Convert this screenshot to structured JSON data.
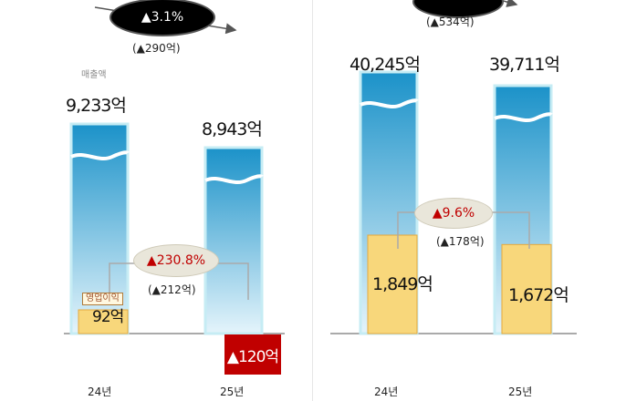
{
  "chart_data": [
    {
      "type": "bar",
      "categories": [
        "24년",
        "25년"
      ],
      "series": [
        {
          "name": "매출액",
          "values": [
            9233,
            8943
          ],
          "labels": [
            "9,233억",
            "8,943억"
          ]
        },
        {
          "name": "영업이익",
          "values": [
            92,
            -120
          ],
          "labels": [
            "92억",
            "▲120억"
          ]
        }
      ],
      "revenue_change": {
        "label": "▲3.1%",
        "amount": "(▲290억)"
      },
      "profit_change": {
        "label": "▲230.8%",
        "amount": "(▲212억)"
      },
      "broken_axis": true
    },
    {
      "type": "bar",
      "categories": [
        "24년",
        "25년"
      ],
      "series": [
        {
          "values": [
            40245,
            39711
          ],
          "labels": [
            "40,245억",
            "39,711억"
          ]
        },
        {
          "values": [
            1849,
            1672
          ],
          "labels": [
            "1,849억",
            "1,672억"
          ]
        }
      ],
      "revenue_change": {
        "label": "",
        "amount": "(▲534억)"
      },
      "profit_change": {
        "label": "▲9.6%",
        "amount": "(▲178억)"
      },
      "broken_axis": true
    }
  ],
  "colors": {
    "bar_top": "#1b92c9",
    "bar_bottom": "#dff2fa",
    "bar_edge": "#c6ecf4",
    "profit_bar": "#f8d77b",
    "profit_edge": "#e6a83c",
    "negative_bar": "#c00000",
    "change_text": "#c00000"
  }
}
